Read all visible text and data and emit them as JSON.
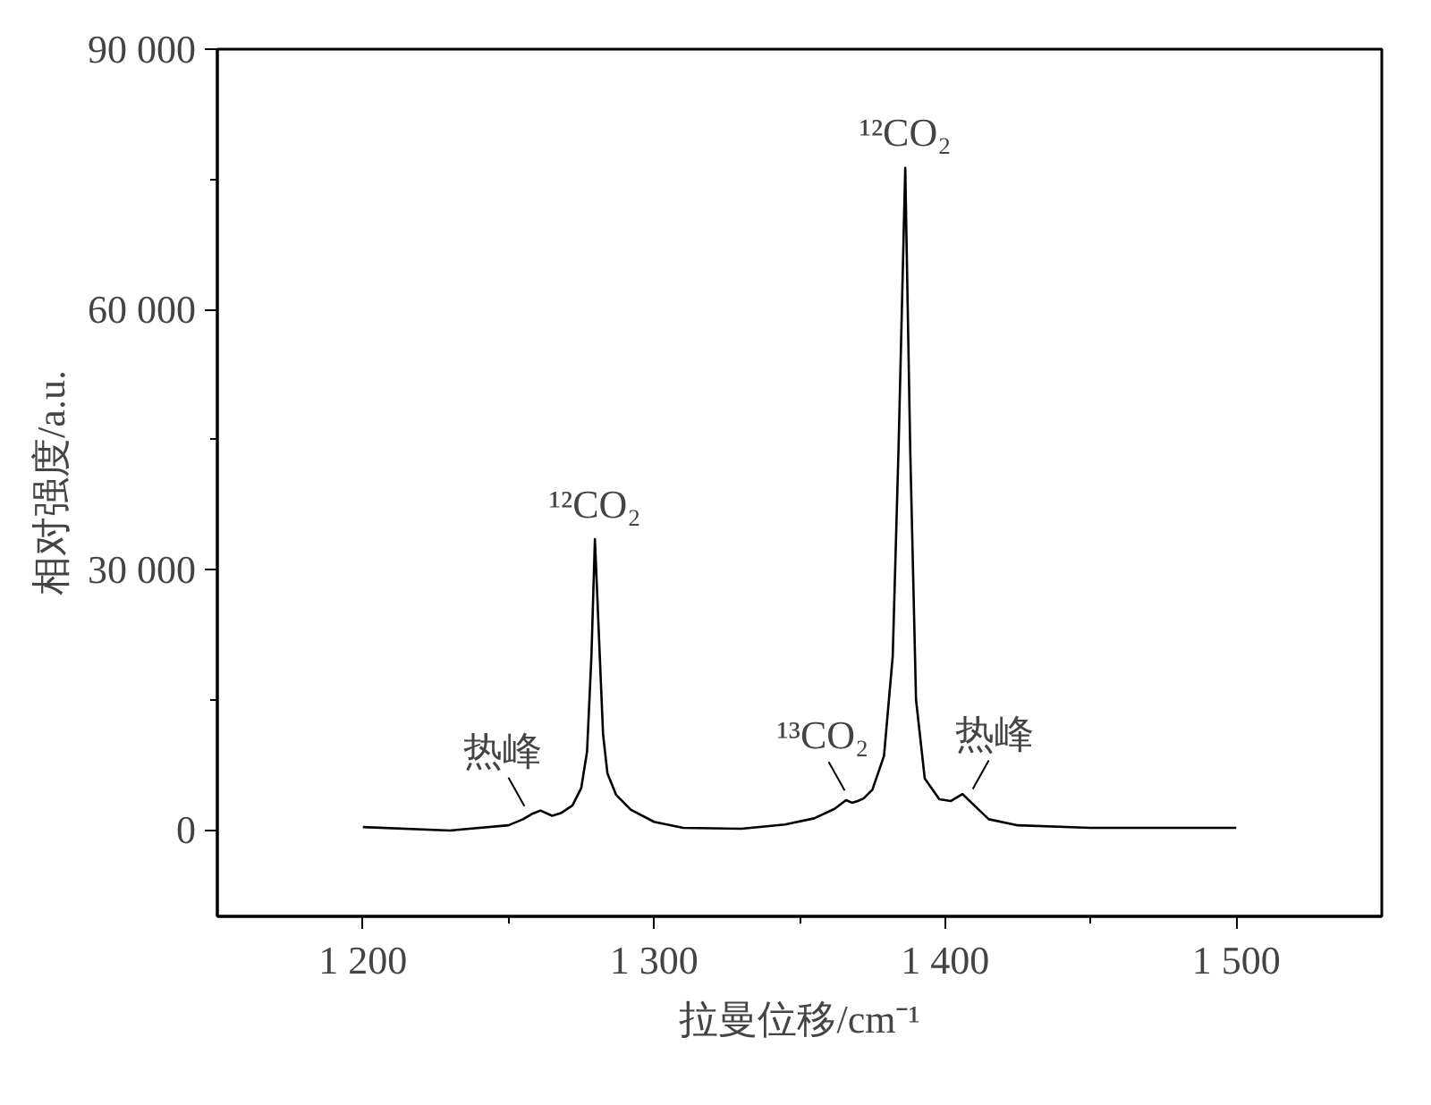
{
  "chart_data": {
    "type": "line",
    "xlabel": "拉曼位移/cm⁻¹",
    "ylabel": "相对强度/a.u.",
    "x": [
      1200,
      1230,
      1250,
      1255,
      1258,
      1261,
      1265,
      1268,
      1272,
      1275,
      1277,
      1278.5,
      1279.7,
      1281,
      1282.5,
      1284,
      1287,
      1292,
      1300,
      1310,
      1330,
      1345,
      1355,
      1362,
      1366,
      1368,
      1370,
      1372,
      1375,
      1379,
      1382,
      1384,
      1386.3,
      1388,
      1390,
      1393,
      1398,
      1402,
      1406,
      1410,
      1415,
      1425,
      1450,
      1500
    ],
    "series": [
      {
        "color": "#000000",
        "values": [
          300,
          -100,
          500,
          1200,
          1800,
          2200,
          1600,
          1900,
          2800,
          4800,
          9000,
          20000,
          33500,
          23000,
          11000,
          6500,
          4000,
          2300,
          900,
          200,
          100,
          600,
          1300,
          2400,
          3400,
          3100,
          3300,
          3600,
          4600,
          8500,
          20000,
          44000,
          76300,
          44000,
          15000,
          5900,
          3500,
          3300,
          4100,
          2800,
          1200,
          500,
          200,
          200
        ]
      }
    ],
    "xlim": [
      1150,
      1550
    ],
    "xticks": [
      {
        "value": 1200,
        "label": "1 200"
      },
      {
        "value": 1250,
        "label": null
      },
      {
        "value": 1300,
        "label": "1 300"
      },
      {
        "value": 1350,
        "label": null
      },
      {
        "value": 1400,
        "label": "1 400"
      },
      {
        "value": 1450,
        "label": null
      },
      {
        "value": 1500,
        "label": "1 500"
      }
    ],
    "ylim": [
      -10000,
      90000
    ],
    "yticks": [
      {
        "value": 0,
        "label": "0"
      },
      {
        "value": 15000,
        "label": null
      },
      {
        "value": 30000,
        "label": "30 000"
      },
      {
        "value": 45000,
        "label": null
      },
      {
        "value": 60000,
        "label": "60 000"
      },
      {
        "value": 75000,
        "label": null
      },
      {
        "value": 90000,
        "label": "90 000"
      }
    ],
    "grid": false,
    "marker": "none",
    "line_style": "solid",
    "annotations": [
      {
        "text": "热峰",
        "x": 1257,
        "y": 1500
      },
      {
        "text": "¹²CO₂",
        "x": 1279.7,
        "y": 33500
      },
      {
        "text": "¹³CO₂",
        "x": 1367,
        "y": 3300
      },
      {
        "text": "¹²CO₂",
        "x": 1386.3,
        "y": 76300
      },
      {
        "text": "热峰",
        "x": 1408,
        "y": 3500
      }
    ]
  }
}
